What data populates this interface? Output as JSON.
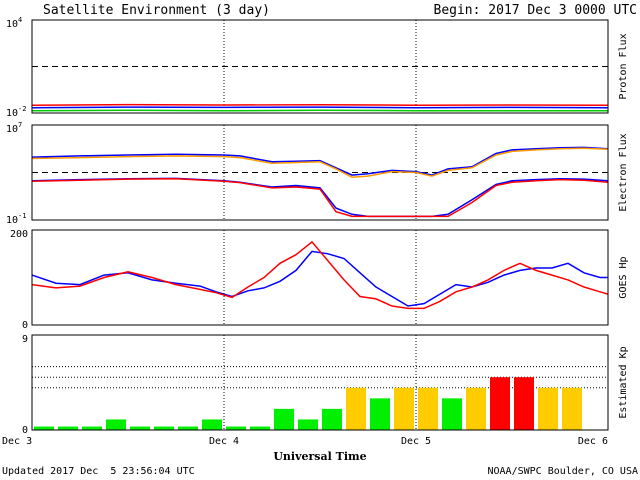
{
  "chart_data": [
    {
      "type": "line",
      "panel": "proton",
      "ylabel": "Proton Flux",
      "yscale": "log",
      "ylim": [
        0.01,
        10000
      ],
      "yticks": [
        {
          "base": "10",
          "exp": "4"
        },
        {
          "base": "10",
          "exp": "-2"
        }
      ],
      "reference_lines": [
        10
      ],
      "x": [
        0,
        12,
        24,
        36,
        48,
        60,
        72
      ],
      "series": [
        {
          "color": "#ff0000",
          "values": [
            0.032,
            0.035,
            0.033,
            0.034,
            0.032,
            0.033,
            0.032
          ]
        },
        {
          "color": "#0000ff",
          "values": [
            0.022,
            0.024,
            0.023,
            0.024,
            0.022,
            0.023,
            0.022
          ]
        },
        {
          "color": "#00cc00",
          "values": [
            0.014,
            0.015,
            0.014,
            0.015,
            0.014,
            0.014,
            0.014
          ]
        }
      ]
    },
    {
      "type": "line",
      "panel": "electron",
      "ylabel": "Electron Flux",
      "yscale": "log",
      "ylim": [
        0.1,
        10000000
      ],
      "yticks": [
        {
          "base": "10",
          "exp": "7"
        },
        {
          "base": "10",
          "exp": "-1"
        }
      ],
      "reference_lines": [
        1000
      ],
      "x": [
        0,
        6,
        12,
        18,
        24,
        26,
        30,
        33,
        36,
        38,
        40,
        42,
        45,
        48,
        50,
        52,
        55,
        58,
        60,
        63,
        66,
        69,
        72
      ],
      "series": [
        {
          "color": "#0000ff",
          "values": [
            20000,
            25000,
            30000,
            35000,
            30000,
            25000,
            8000,
            9000,
            10000,
            2500,
            600,
            800,
            1500,
            1200,
            600,
            2000,
            3000,
            40000,
            80000,
            100000,
            120000,
            130000,
            100000
          ]
        },
        {
          "color": "#ff9900",
          "values": [
            15000,
            18000,
            22000,
            25000,
            22000,
            18000,
            6000,
            7000,
            8000,
            2000,
            400,
            500,
            1200,
            1000,
            500,
            1500,
            2500,
            30000,
            60000,
            80000,
            100000,
            110000,
            90000
          ]
        },
        {
          "color": "#0000ff",
          "values": [
            200,
            250,
            300,
            320,
            200,
            150,
            60,
            80,
            50,
            1,
            0.3,
            0.2,
            0.2,
            0.2,
            0.2,
            0.3,
            5,
            100,
            200,
            250,
            300,
            280,
            200
          ]
        },
        {
          "color": "#ff0000",
          "values": [
            180,
            220,
            280,
            300,
            180,
            140,
            50,
            60,
            40,
            0.5,
            0.2,
            0.2,
            0.2,
            0.2,
            0.2,
            0.2,
            3,
            80,
            150,
            200,
            250,
            220,
            150
          ]
        }
      ]
    },
    {
      "type": "line",
      "panel": "hp",
      "ylabel": "GOES Hp",
      "ylim": [
        0,
        200
      ],
      "yticks": [
        "200",
        "0"
      ],
      "x": [
        0,
        3,
        6,
        9,
        12,
        15,
        18,
        21,
        23,
        25,
        27,
        29,
        31,
        33,
        35,
        37,
        39,
        41,
        43,
        45,
        47,
        49,
        51,
        53,
        55,
        57,
        59,
        61,
        63,
        65,
        67,
        69,
        71,
        72
      ],
      "series": [
        {
          "color": "#0000ff",
          "values": [
            105,
            88,
            85,
            105,
            110,
            95,
            88,
            82,
            70,
            60,
            72,
            78,
            92,
            115,
            155,
            150,
            140,
            110,
            80,
            60,
            40,
            45,
            65,
            85,
            80,
            90,
            105,
            115,
            120,
            120,
            130,
            110,
            100,
            100
          ]
        },
        {
          "color": "#ff0000",
          "values": [
            85,
            78,
            82,
            100,
            112,
            100,
            85,
            75,
            68,
            58,
            80,
            100,
            130,
            148,
            175,
            135,
            95,
            60,
            55,
            40,
            35,
            35,
            50,
            70,
            80,
            95,
            115,
            130,
            115,
            105,
            95,
            80,
            70,
            65
          ]
        }
      ]
    },
    {
      "type": "bar",
      "panel": "kp",
      "ylabel": "Estimated Kp",
      "ylim": [
        0,
        9
      ],
      "yticks": [
        "9",
        "0"
      ],
      "reference_lines": [
        4,
        5,
        6
      ],
      "bin_hours": 3,
      "values": [
        0.33,
        0.33,
        0.33,
        1,
        0.33,
        0.33,
        0.33,
        1,
        0.33,
        0.33,
        2,
        1,
        2,
        4,
        3,
        4,
        4,
        3,
        4,
        5,
        5,
        4,
        4
      ],
      "colors": [
        "#00ee00",
        "#00ee00",
        "#00ee00",
        "#00ee00",
        "#00ee00",
        "#00ee00",
        "#00ee00",
        "#00ee00",
        "#00ee00",
        "#00ee00",
        "#00ee00",
        "#00ee00",
        "#00ee00",
        "#ffcc00",
        "#00ee00",
        "#ffcc00",
        "#ffcc00",
        "#00ee00",
        "#ffcc00",
        "#ff0000",
        "#ff0000",
        "#ffcc00",
        "#ffcc00"
      ]
    }
  ],
  "header": {
    "title": "Satellite Environment (3 day)",
    "begin": "Begin:  2017 Dec 3 0000 UTC"
  },
  "x_axis": {
    "label": "Universal Time",
    "ticks": [
      {
        "hour": 0,
        "label": "Dec 3"
      },
      {
        "hour": 24,
        "label": "Dec 4"
      },
      {
        "hour": 48,
        "label": "Dec 5"
      },
      {
        "hour": 72,
        "label": "Dec 6"
      }
    ]
  },
  "footer": {
    "updated": "Updated 2017 Dec  5 23:56:04 UTC",
    "credit": "NOAA/SWPC Boulder, CO USA"
  }
}
